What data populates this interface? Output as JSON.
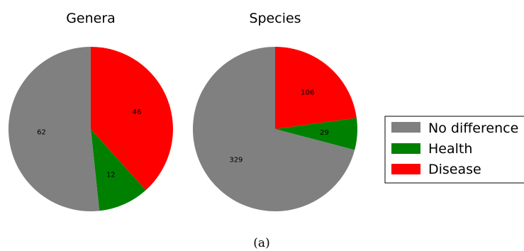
{
  "chart_data": [
    {
      "type": "pie",
      "title": "Genera",
      "slices": [
        {
          "label": "No difference",
          "value": 62,
          "color": "#808080"
        },
        {
          "label": "Health",
          "value": 12,
          "color": "#008000"
        },
        {
          "label": "Disease",
          "value": 46,
          "color": "#ff0000"
        }
      ]
    },
    {
      "type": "pie",
      "title": "Species",
      "slices": [
        {
          "label": "No difference",
          "value": 329,
          "color": "#808080"
        },
        {
          "label": "Health",
          "value": 29,
          "color": "#008000"
        },
        {
          "label": "Disease",
          "value": 106,
          "color": "#ff0000"
        }
      ]
    }
  ],
  "legend": {
    "placement": "right",
    "items": [
      {
        "label": "No difference",
        "color": "#808080"
      },
      {
        "label": "Health",
        "color": "#008000"
      },
      {
        "label": "Disease",
        "color": "#ff0000"
      }
    ]
  },
  "caption": "(a)"
}
